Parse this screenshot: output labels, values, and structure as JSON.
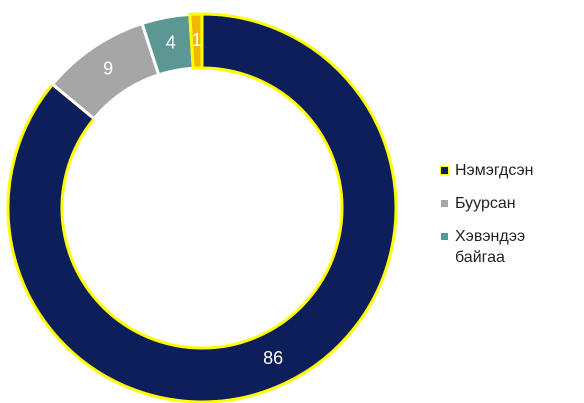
{
  "chart_data": {
    "type": "donut",
    "categories": [
      "Нэмэгдсэн",
      "Буурсан",
      "Хэвэндээ байгаа",
      null
    ],
    "values": [
      86,
      9,
      4,
      1
    ],
    "colors": [
      "#0c1f5b",
      "#a6a6a6",
      "#5d9793",
      "#f2b705"
    ],
    "edge_colors": [
      "#ffff00",
      "#ffffff",
      "#ffffff",
      "#ffff00"
    ],
    "start_angle": 0,
    "direction": "clockwise",
    "legend": "right"
  }
}
